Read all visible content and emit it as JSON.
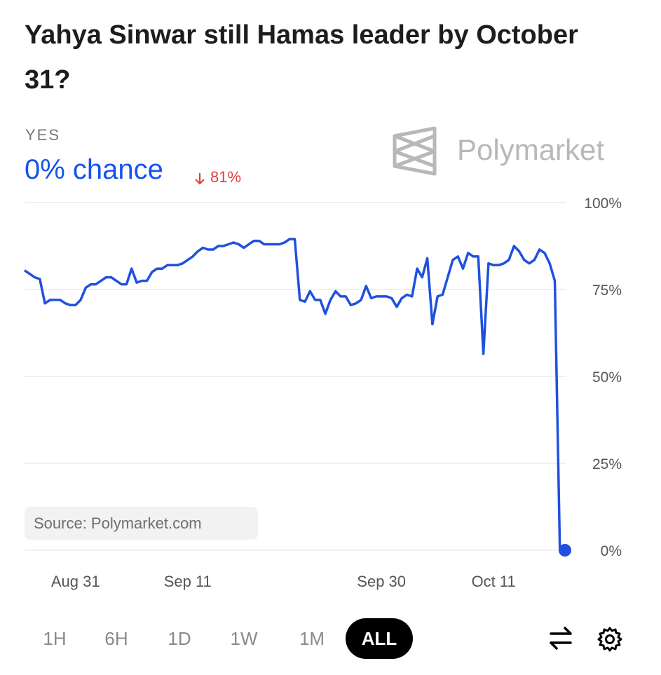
{
  "header": {
    "title": "Yahya Sinwar still Hamas leader by October 31?"
  },
  "outcome": {
    "label": "YES",
    "chance": "0% chance",
    "change": "81%"
  },
  "brand": "Polymarket",
  "source": "Source: Polymarket.com",
  "ranges": [
    "1H",
    "6H",
    "1D",
    "1W",
    "1M",
    "ALL"
  ],
  "selected_range": "ALL",
  "chart_data": {
    "type": "line",
    "color": "#1f50e0",
    "grid": true,
    "categories": [
      null,
      null,
      null,
      null,
      null,
      null,
      null,
      null,
      null,
      null,
      "Aug 31",
      null,
      null,
      null,
      null,
      null,
      null,
      null,
      null,
      null,
      null,
      null,
      null,
      null,
      null,
      null,
      null,
      null,
      null,
      null,
      null,
      null,
      "Sep 11",
      null,
      null,
      null,
      null,
      null,
      null,
      null,
      null,
      null,
      null,
      null,
      null,
      null,
      null,
      null,
      null,
      null,
      null,
      null,
      null,
      null,
      null,
      null,
      null,
      null,
      null,
      null,
      null,
      null,
      null,
      null,
      null,
      null,
      null,
      null,
      null,
      null,
      "Sep 30",
      null,
      null,
      null,
      null,
      null,
      null,
      null,
      null,
      null,
      null,
      null,
      null,
      null,
      null,
      null,
      null,
      null,
      null,
      null,
      null,
      null,
      "Oct 11",
      null,
      null,
      null,
      null,
      null,
      null,
      null,
      null,
      null,
      null,
      null,
      null,
      null,
      null
    ],
    "values": [
      80.5,
      79.5,
      78.5,
      78,
      71,
      72,
      72,
      72,
      71,
      70.5,
      70.5,
      72,
      75.5,
      76.5,
      76.5,
      77.5,
      78.5,
      78.5,
      77.5,
      76.5,
      76.5,
      81,
      77,
      77.5,
      77.5,
      80,
      81,
      81,
      82,
      82,
      82,
      82.5,
      83.5,
      84.5,
      86,
      87,
      86.5,
      86.5,
      87.5,
      87.5,
      88,
      88.5,
      88,
      87,
      88,
      89,
      89,
      88,
      88,
      88,
      88,
      88.5,
      89.5,
      89.5,
      72,
      71.5,
      74.5,
      72,
      72,
      68,
      72,
      74.5,
      73,
      73,
      70.5,
      71,
      72,
      76,
      72.5,
      73,
      73,
      73,
      72.5,
      70,
      72.5,
      73.5,
      73,
      81,
      78.5,
      84,
      65,
      73,
      73.5,
      78.5,
      83.5,
      84.5,
      81,
      85.5,
      84.5,
      84.5,
      56.5,
      82.5,
      82,
      82,
      82.5,
      83.5,
      87.5,
      86,
      83.5,
      82.5,
      83.5,
      86.5,
      85.5,
      82.5,
      77.5,
      0.5,
      0
    ],
    "ylim": [
      0,
      100
    ],
    "yticks": [
      {
        "value": 0,
        "label": "0%"
      },
      {
        "value": 25,
        "label": "25%"
      },
      {
        "value": 50,
        "label": "50%"
      },
      {
        "value": 75,
        "label": "75%"
      },
      {
        "value": 100,
        "label": "100%"
      }
    ]
  }
}
